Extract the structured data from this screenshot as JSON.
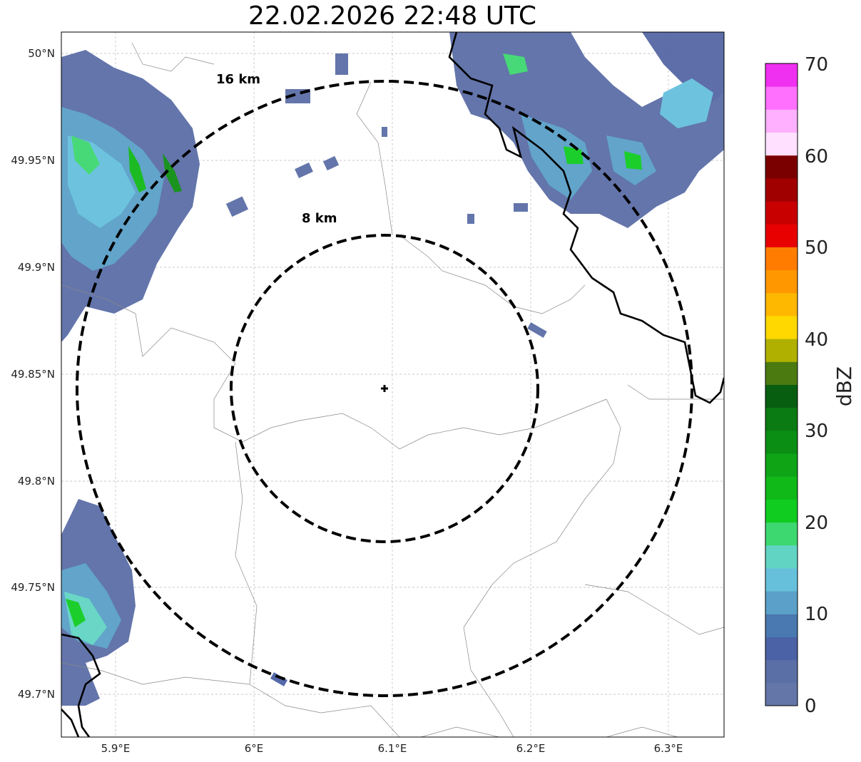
{
  "title": "22.02.2026 22:48 UTC",
  "map": {
    "lon_ticks": [
      "5.9°E",
      "6°E",
      "6.1°E",
      "6.2°E",
      "6.3°E"
    ],
    "lat_ticks": [
      "50°N",
      "49.95°N",
      "49.9°N",
      "49.85°N",
      "49.8°N",
      "49.75°N",
      "49.7°N"
    ],
    "rings": [
      {
        "label": "16 km",
        "radius_km": 16
      },
      {
        "label": "8 km",
        "radius_km": 8
      }
    ],
    "center_marker": "radar-site-cross"
  },
  "colorbar": {
    "label": "dBZ",
    "ticks": [
      "0",
      "10",
      "20",
      "30",
      "40",
      "50",
      "60",
      "70"
    ],
    "colors": [
      "#6476a8",
      "#5a6fa6",
      "#4b62a6",
      "#4a78b0",
      "#5aa0c8",
      "#66c0dc",
      "#62d4c4",
      "#3ed870",
      "#10cc20",
      "#10b818",
      "#0ea416",
      "#0a8e14",
      "#0a7a12",
      "#085e10",
      "#4a7a10",
      "#b0b000",
      "#ffd800",
      "#ffb800",
      "#ff9800",
      "#ff7c00",
      "#e80000",
      "#c80000",
      "#a00000",
      "#7a0000",
      "#ffe0ff",
      "#ffb0ff",
      "#ff70ff",
      "#f030f0"
    ]
  }
}
